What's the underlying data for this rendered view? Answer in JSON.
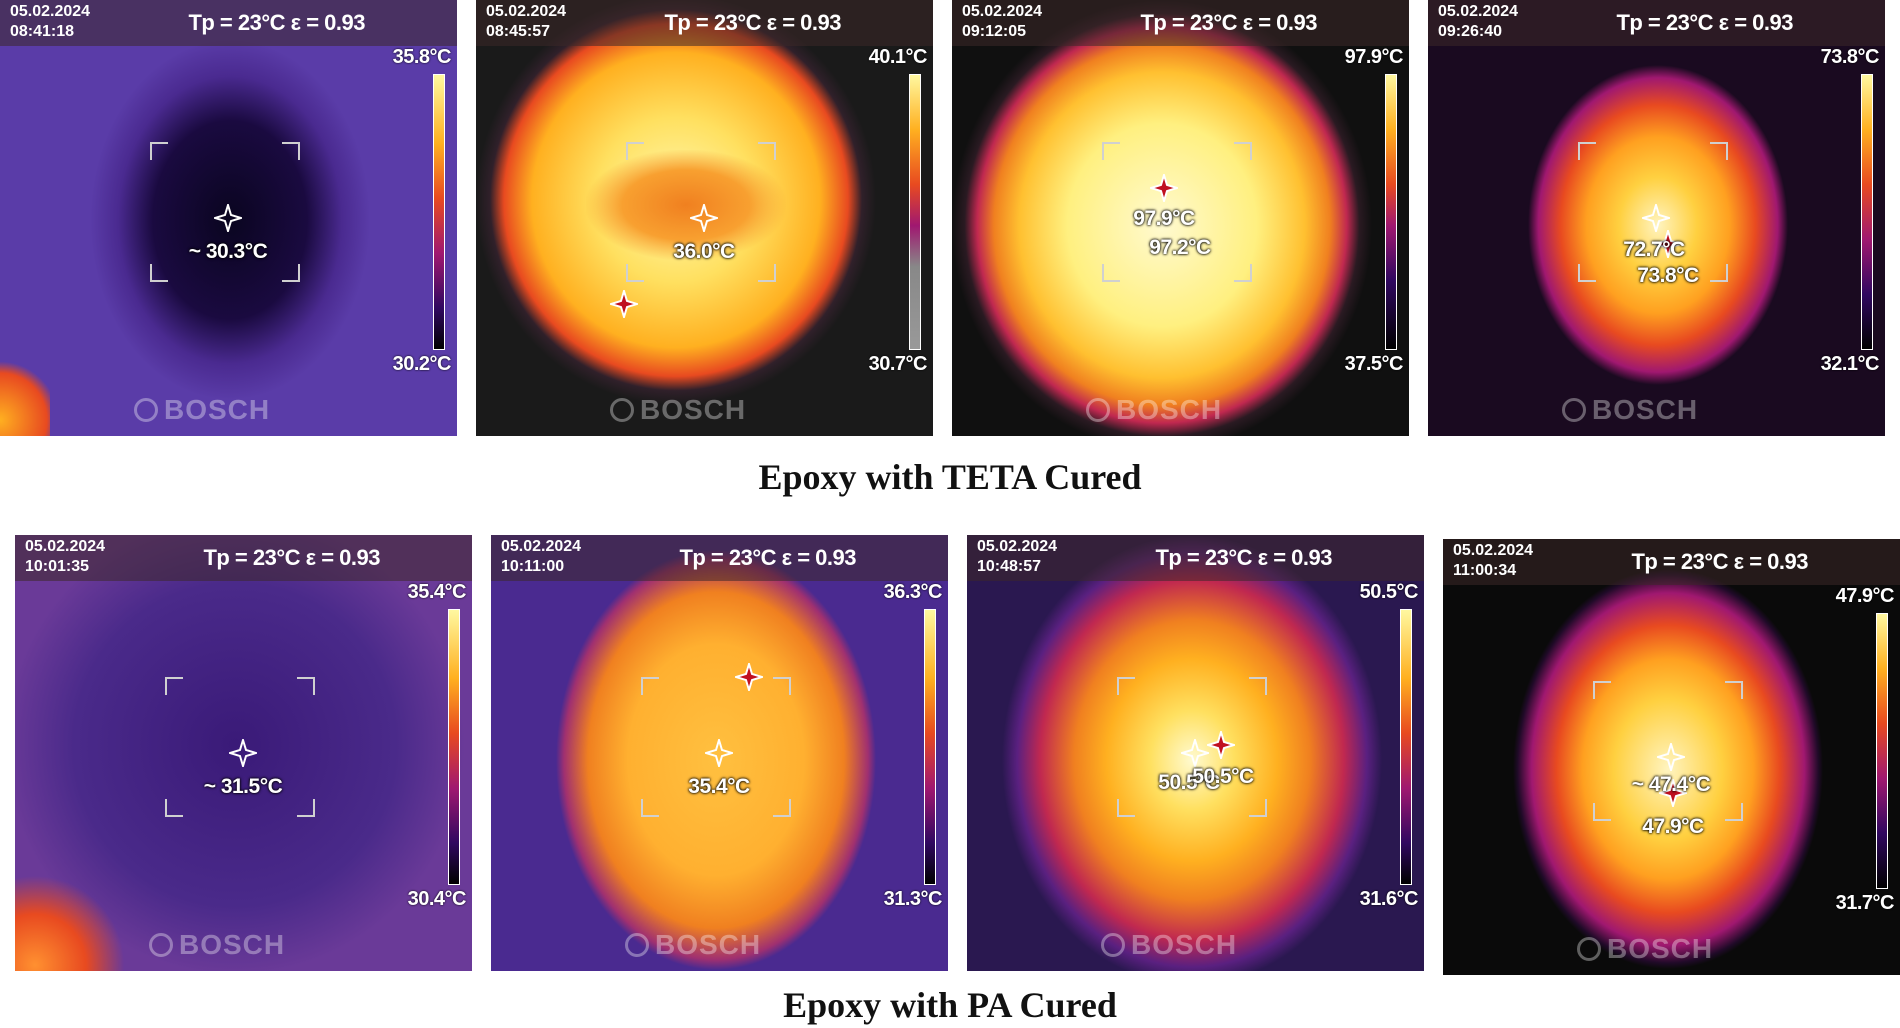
{
  "figure": {
    "rows": [
      {
        "caption": "Epoxy with TETA Cured",
        "panels": [
          {
            "date": "05.02.2024",
            "time": "08:41:18",
            "params": "Tp = 23°C  ε = 0.93",
            "scale_max": "35.8°C",
            "scale_min": "30.2°C",
            "spot_labels": [
              "~ 30.3°C"
            ],
            "brand": "BOSCH"
          },
          {
            "date": "05.02.2024",
            "time": "08:45:57",
            "params": "Tp = 23°C  ε = 0.93",
            "scale_max": "40.1°C",
            "scale_min": "30.7°C",
            "spot_labels": [
              "36.0°C"
            ],
            "brand": "BOSCH"
          },
          {
            "date": "05.02.2024",
            "time": "09:12:05",
            "params": "Tp = 23°C  ε = 0.93",
            "scale_max": "97.9°C",
            "scale_min": "37.5°C",
            "spot_labels": [
              "97.9°C",
              "97.2°C"
            ],
            "brand": "BOSCH"
          },
          {
            "date": "05.02.2024",
            "time": "09:26:40",
            "params": "Tp = 23°C  ε = 0.93",
            "scale_max": "73.8°C",
            "scale_min": "32.1°C",
            "spot_labels": [
              "72.7°C",
              "73.8°C"
            ],
            "brand": "BOSCH"
          }
        ]
      },
      {
        "caption": "Epoxy with PA Cured",
        "panels": [
          {
            "date": "05.02.2024",
            "time": "10:01:35",
            "params": "Tp = 23°C  ε = 0.93",
            "scale_max": "35.4°C",
            "scale_min": "30.4°C",
            "spot_labels": [
              "~ 31.5°C"
            ],
            "brand": "BOSCH"
          },
          {
            "date": "05.02.2024",
            "time": "10:11:00",
            "params": "Tp = 23°C  ε = 0.93",
            "scale_max": "36.3°C",
            "scale_min": "31.3°C",
            "spot_labels": [
              "35.4°C"
            ],
            "brand": "BOSCH"
          },
          {
            "date": "05.02.2024",
            "time": "10:48:57",
            "params": "Tp = 23°C  ε = 0.93",
            "scale_max": "50.5°C",
            "scale_min": "31.6°C",
            "spot_labels": [
              "50.5°C",
              "50.5°C"
            ],
            "brand": "BOSCH"
          },
          {
            "date": "05.02.2024",
            "time": "11:00:34",
            "params": "Tp = 23°C  ε = 0.93",
            "scale_max": "47.9°C",
            "scale_min": "31.7°C",
            "spot_labels": [
              "~ 47.4°C",
              "47.9°C"
            ],
            "brand": "BOSCH"
          }
        ]
      }
    ]
  }
}
